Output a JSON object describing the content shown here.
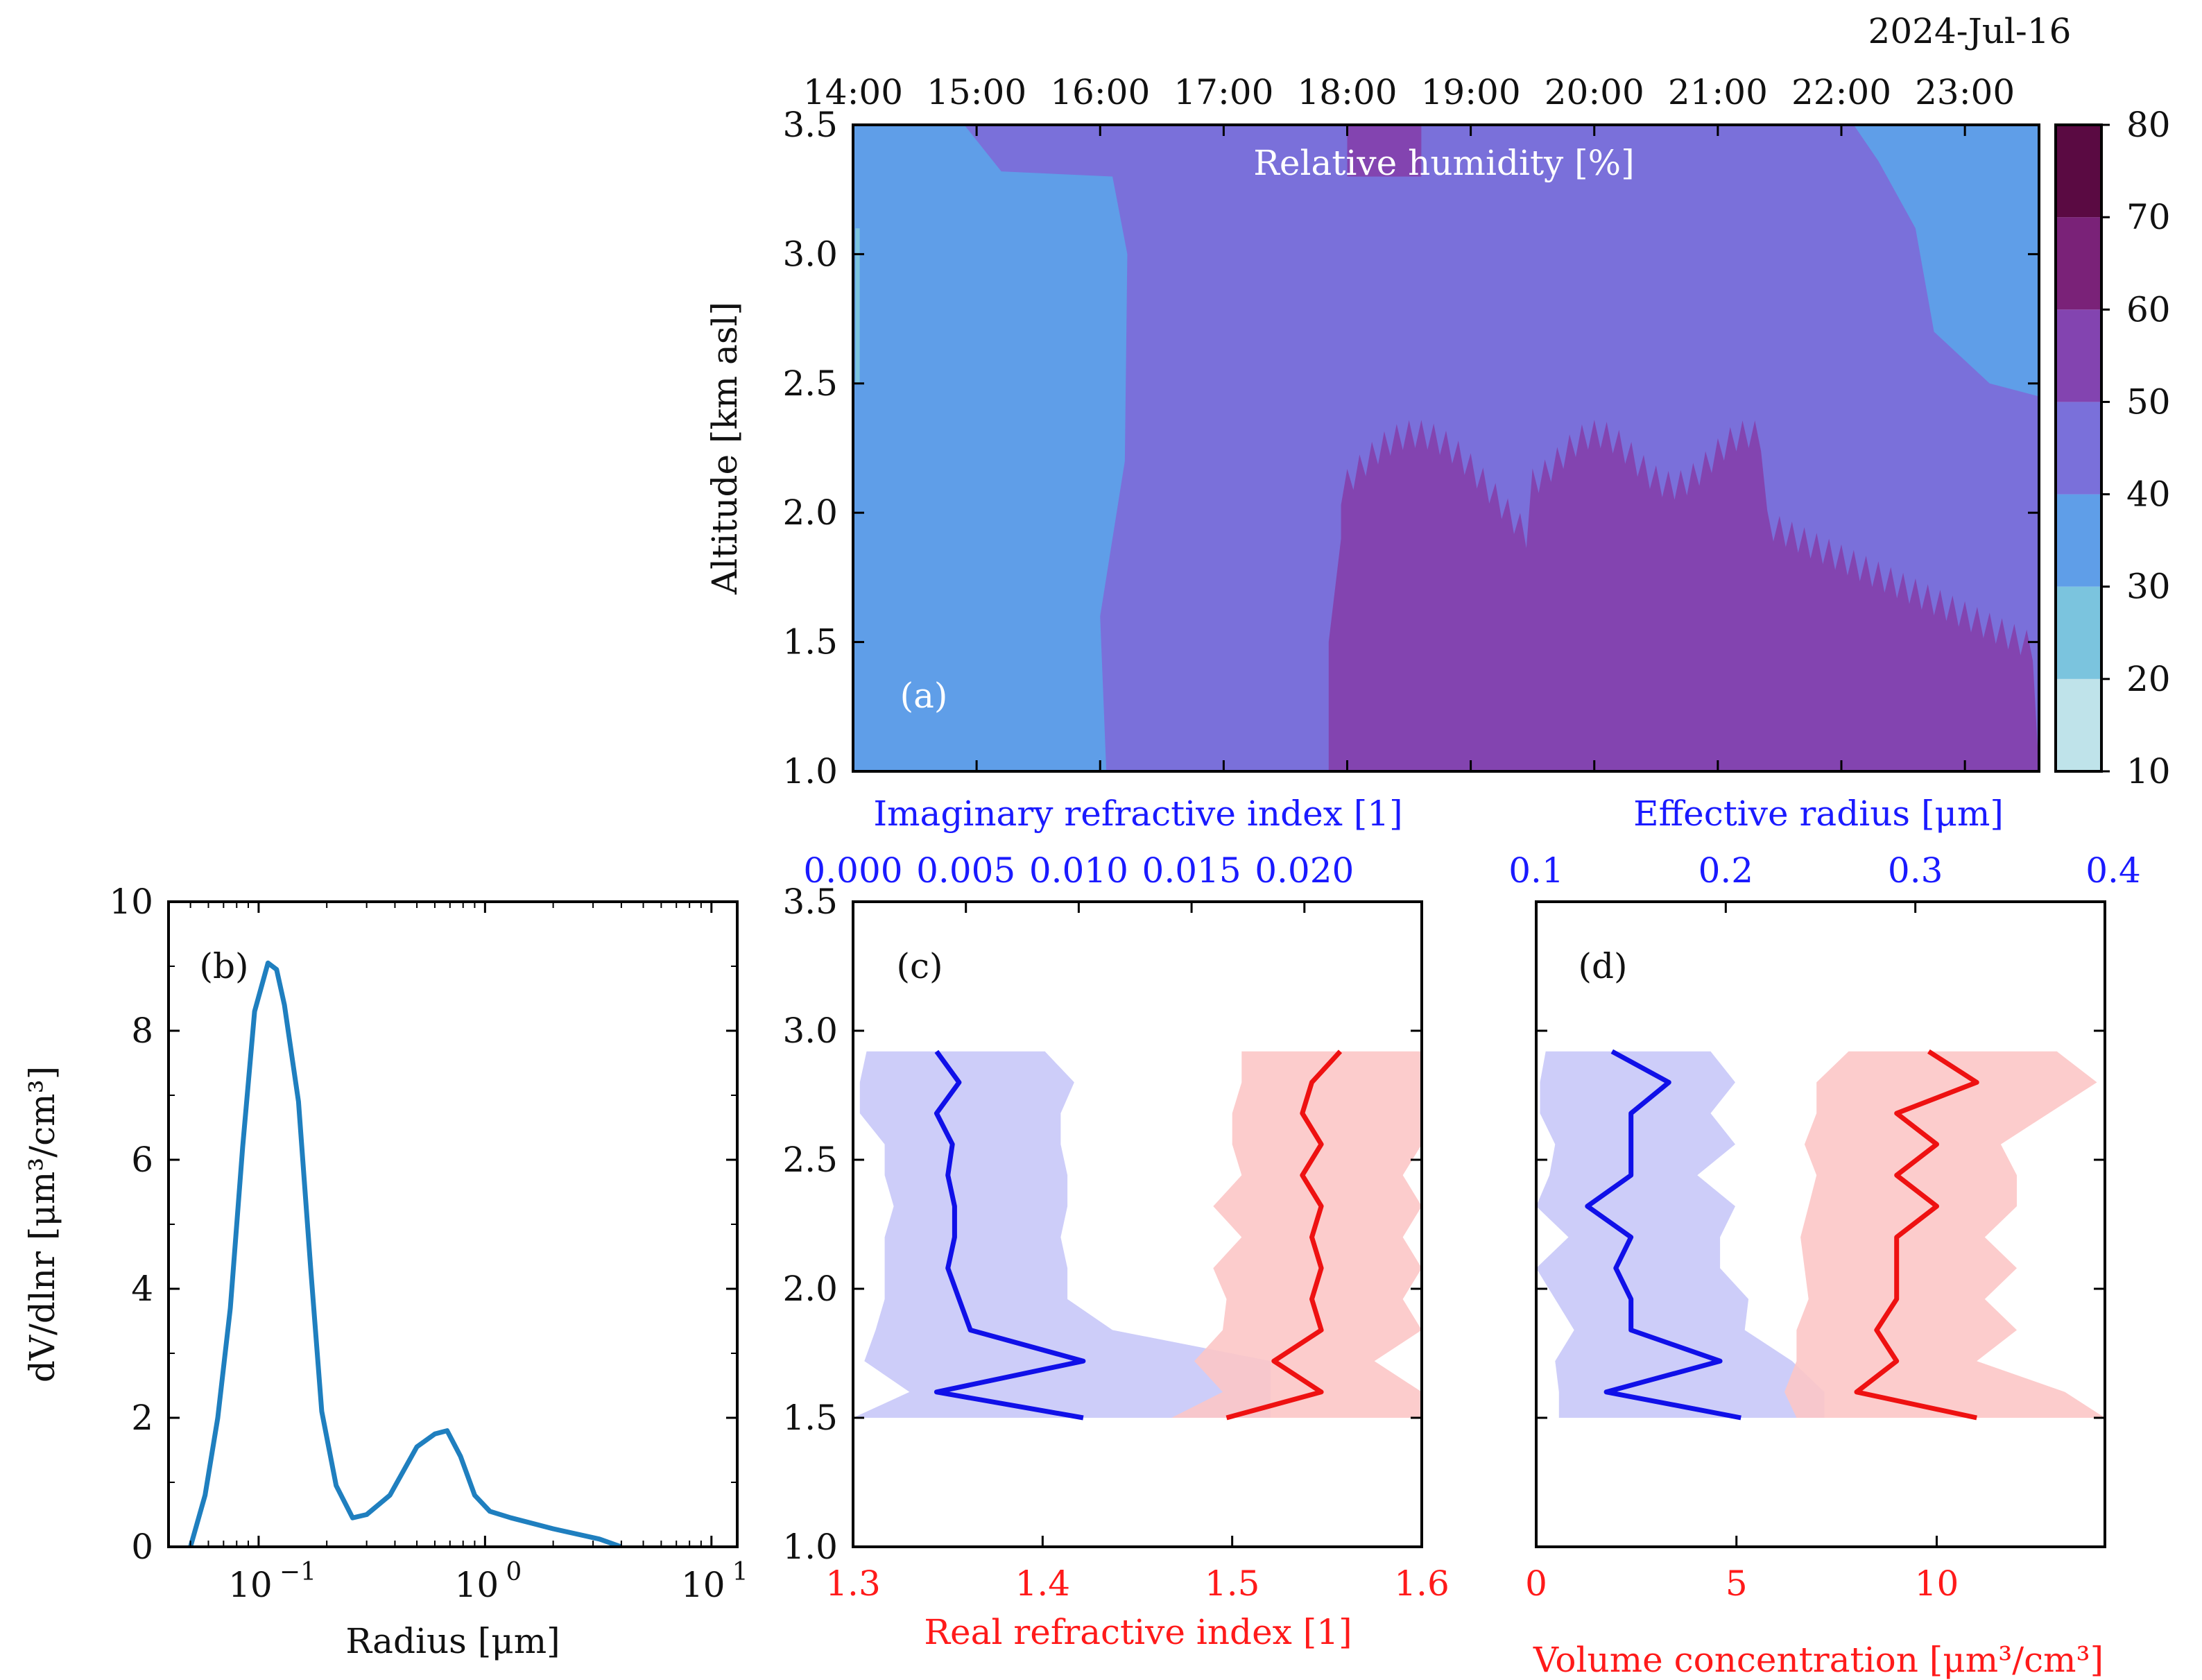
{
  "colors": {
    "blue_axis": "#1a1aff",
    "red_axis": "#ff1a1a",
    "blue_line": "#1010e8",
    "red_line": "#ee1111",
    "blue_band": "#c8c8f8",
    "red_band": "#fcc6c6",
    "psd_line": "#1f7fbf",
    "rh_levels": [
      "#bfe3ea",
      "#7bc4de",
      "#5f9ee8",
      "#7a70da",
      "#8344b0",
      "#7a2278",
      "#5a0a42"
    ]
  },
  "chart_data": [
    {
      "id": "a",
      "type": "heatmap",
      "panel_label": "(a)",
      "title": "Relative humidity [%]",
      "date_label": "2024-Jul-16",
      "ylabel": "Altitude [km asl]",
      "ylim": [
        1.0,
        3.5
      ],
      "yticks": [
        "1.0",
        "1.5",
        "2.0",
        "2.5",
        "3.0",
        "3.5"
      ],
      "xticks": [
        "14:00",
        "15:00",
        "16:00",
        "17:00",
        "18:00",
        "19:00",
        "20:00",
        "21:00",
        "22:00",
        "23:00"
      ],
      "x_hours_range": [
        14.0,
        23.6
      ],
      "colorbar": {
        "ticks": [
          "10",
          "20",
          "30",
          "40",
          "50",
          "60",
          "70",
          "80"
        ],
        "levels": [
          10,
          20,
          30,
          40,
          50,
          60,
          70,
          80
        ]
      },
      "regions": [
        {
          "level": "30-40",
          "description": "background 14:00-16:05 all altitudes; 22:40-23:40 above 2.5 km"
        },
        {
          "level": "40-50",
          "description": "16:05-17:50 all altitudes; 17:50-21:30 above ~2.2 km; 21:30-23:40 1.6-2.6 km"
        },
        {
          "level": "50-60",
          "description": "17:50-21:30 below ~2.2 km; 21:30-23:40 below ~1.6 km"
        }
      ]
    },
    {
      "id": "b",
      "type": "line",
      "panel_label": "(b)",
      "xlabel": "Radius [μm]",
      "ylabel": "dV/dlnr [μm³/cm³]",
      "xscale": "log",
      "xlim": [
        0.04,
        13
      ],
      "ylim": [
        0,
        10
      ],
      "yticks": [
        "0",
        "2",
        "4",
        "6",
        "8",
        "10"
      ],
      "xticks": [
        {
          "base": "10",
          "exp": "−1"
        },
        {
          "base": "10",
          "exp": "0"
        },
        {
          "base": "10",
          "exp": "1"
        }
      ],
      "x": [
        0.05,
        0.058,
        0.066,
        0.075,
        0.085,
        0.096,
        0.11,
        0.12,
        0.13,
        0.15,
        0.17,
        0.19,
        0.22,
        0.26,
        0.3,
        0.38,
        0.5,
        0.6,
        0.68,
        0.78,
        0.9,
        1.05,
        1.3,
        2.0,
        3.2,
        4.0
      ],
      "y": [
        0.0,
        0.8,
        2.0,
        3.7,
        6.2,
        8.3,
        9.05,
        8.95,
        8.4,
        6.9,
        4.3,
        2.1,
        0.95,
        0.45,
        0.5,
        0.8,
        1.55,
        1.75,
        1.8,
        1.4,
        0.8,
        0.55,
        0.45,
        0.28,
        0.12,
        0.0
      ]
    },
    {
      "id": "c",
      "type": "line",
      "panel_label": "(c)",
      "ylim": [
        1.0,
        3.5
      ],
      "yticks": [
        "1.0",
        "1.5",
        "2.0",
        "2.5",
        "3.0",
        "3.5"
      ],
      "altitude": [
        1.5,
        1.6,
        1.72,
        1.84,
        1.96,
        2.08,
        2.2,
        2.32,
        2.44,
        2.56,
        2.68,
        2.8,
        2.92
      ],
      "series": [
        {
          "name": "Imaginary refractive index [1]",
          "axis": "top",
          "color": "blue",
          "xlim": [
            0.0,
            0.0252
          ],
          "xticks": [
            "0.000",
            "0.005",
            "0.010",
            "0.015",
            "0.020"
          ],
          "values": [
            0.0102,
            0.0037,
            0.0102,
            0.0052,
            0.0047,
            0.0042,
            0.0045,
            0.0045,
            0.0042,
            0.0044,
            0.0037,
            0.0047,
            0.0037
          ],
          "lower": [
            0.0,
            0.0025,
            0.0005,
            0.001,
            0.0014,
            0.0014,
            0.0014,
            0.0018,
            0.0014,
            0.0014,
            0.0003,
            0.0003,
            0.0006
          ],
          "upper": [
            0.0185,
            0.0185,
            0.0185,
            0.0115,
            0.0095,
            0.0095,
            0.0092,
            0.0095,
            0.0095,
            0.0092,
            0.0092,
            0.0098,
            0.0085
          ]
        },
        {
          "name": "Real refractive index [1]",
          "axis": "bottom",
          "color": "red",
          "xlim": [
            1.3,
            1.6
          ],
          "xticks": [
            "1.3",
            "1.4",
            "1.5",
            "1.6"
          ],
          "values": [
            1.497,
            1.547,
            1.522,
            1.547,
            1.542,
            1.547,
            1.542,
            1.547,
            1.537,
            1.547,
            1.537,
            1.542,
            1.557
          ],
          "lower": [
            1.468,
            1.495,
            1.48,
            1.495,
            1.497,
            1.49,
            1.505,
            1.49,
            1.505,
            1.5,
            1.5,
            1.505,
            1.505
          ],
          "upper": [
            1.6,
            1.6,
            1.575,
            1.6,
            1.59,
            1.6,
            1.59,
            1.6,
            1.59,
            1.6,
            1.6,
            1.6,
            1.6
          ]
        }
      ],
      "top_label": "Imaginary refractive index [1]",
      "bottom_label": "Real refractive index [1]"
    },
    {
      "id": "d",
      "type": "line",
      "panel_label": "(d)",
      "ylim": [
        1.0,
        3.5
      ],
      "altitude": [
        1.5,
        1.6,
        1.72,
        1.84,
        1.96,
        2.08,
        2.2,
        2.32,
        2.44,
        2.56,
        2.68,
        2.8,
        2.92
      ],
      "series": [
        {
          "name": "Effective radius [μm]",
          "axis": "top",
          "color": "blue",
          "xlim": [
            0.1,
            0.4
          ],
          "xticks": [
            "0.1",
            "0.2",
            "0.3",
            "0.4"
          ],
          "values": [
            0.208,
            0.137,
            0.197,
            0.15,
            0.15,
            0.142,
            0.15,
            0.127,
            0.15,
            0.15,
            0.15,
            0.17,
            0.14
          ],
          "lower": [
            0.112,
            0.112,
            0.11,
            0.12,
            0.11,
            0.1,
            0.117,
            0.1,
            0.107,
            0.11,
            0.102,
            0.102,
            0.105
          ],
          "upper": [
            0.252,
            0.252,
            0.235,
            0.21,
            0.212,
            0.197,
            0.197,
            0.205,
            0.185,
            0.205,
            0.192,
            0.205,
            0.192
          ]
        },
        {
          "name": "Volume concentration [μm³/cm³]",
          "axis": "bottom",
          "color": "red",
          "xlim": [
            0,
            14.2
          ],
          "xticks": [
            "0",
            "5",
            "10"
          ],
          "values": [
            11,
            8,
            9,
            8.5,
            9,
            9,
            9,
            10,
            9,
            10,
            9,
            11,
            9.8
          ],
          "lower": [
            6.5,
            6.2,
            6.5,
            6.5,
            6.8,
            6.7,
            6.6,
            6.8,
            7,
            6.7,
            7,
            7,
            7.8
          ],
          "upper": [
            14.2,
            13.2,
            11,
            12,
            11.2,
            12,
            11.2,
            12,
            12,
            11.6,
            12.8,
            14,
            13
          ]
        }
      ],
      "top_label": "Effective radius [μm]",
      "bottom_label": "Volume concentration [μm³/cm³]"
    }
  ]
}
